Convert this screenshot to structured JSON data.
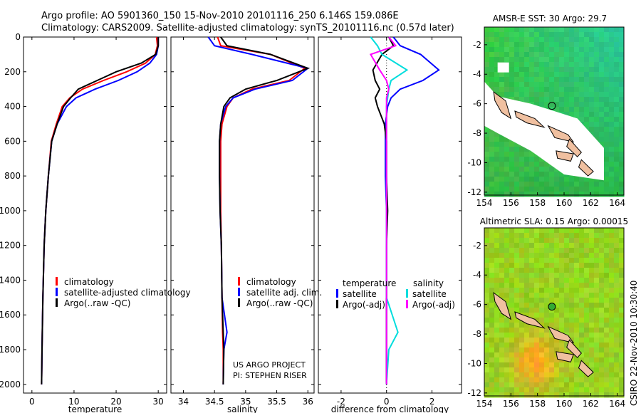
{
  "header": {
    "line1": "Argo profile: AO 5901360_150 15-Nov-2010 20101116_250 6.146S 159.086E",
    "line2": "Climatology: CARS2009. Satellite-adjusted climatology: synTS_20101116.nc (0.57d later)"
  },
  "side_label": "CSIRO 22-Nov-2010 10:30:40",
  "colors": {
    "climatology": "#ff0000",
    "satellite": "#0000ff",
    "argo": "#000000",
    "satellite_sal": "#00dddd",
    "argo_sal_diff": "#ff00ff"
  },
  "chart_data": [
    {
      "type": "line",
      "xlabel": "temperature",
      "ylabel": "",
      "xlim": [
        -2,
        32
      ],
      "ylim": [
        2050,
        0
      ],
      "x_ticks": [
        "0",
        "10",
        "20",
        "30"
      ],
      "y_ticks": [
        "0",
        "200",
        "400",
        "600",
        "800",
        "1000",
        "1200",
        "1400",
        "1600",
        "1800",
        "2000"
      ],
      "legend": [
        "climatology",
        "satellite-adjusted climatology",
        "Argo(..raw -QC)"
      ],
      "series": [
        {
          "name": "climatology",
          "color": "#ff0000",
          "x": [
            29.6,
            29.8,
            29.3,
            27.0,
            22.5,
            17.0,
            12.0,
            9.0,
            7.2,
            5.8,
            4.6,
            3.9,
            3.3,
            2.9,
            2.6,
            2.4,
            2.3
          ],
          "y": [
            0,
            50,
            100,
            150,
            200,
            250,
            300,
            350,
            400,
            500,
            600,
            800,
            1000,
            1200,
            1500,
            1800,
            2000
          ]
        },
        {
          "name": "satellite-adjusted climatology",
          "color": "#0000ff",
          "x": [
            30.0,
            30.0,
            29.6,
            28.0,
            25.0,
            20.5,
            15.0,
            10.5,
            8.2,
            6.0,
            4.7,
            3.9,
            3.3,
            2.9,
            2.6,
            2.4,
            2.3
          ],
          "y": [
            0,
            50,
            100,
            150,
            200,
            250,
            300,
            350,
            400,
            500,
            600,
            800,
            1000,
            1200,
            1500,
            1800,
            2000
          ]
        },
        {
          "name": "Argo(..raw -QC)",
          "color": "#000000",
          "x": [
            30.0,
            30.0,
            29.4,
            26.0,
            20.0,
            15.5,
            11.0,
            9.2,
            7.5,
            6.0,
            4.7,
            3.9,
            3.3,
            2.9,
            2.6,
            2.4,
            2.3
          ],
          "y": [
            0,
            50,
            100,
            150,
            200,
            250,
            300,
            350,
            400,
            500,
            600,
            800,
            1000,
            1200,
            1500,
            1800,
            2000
          ]
        }
      ]
    },
    {
      "type": "line",
      "xlabel": "salinity",
      "xlim": [
        33.8,
        36.1
      ],
      "ylim": [
        2050,
        0
      ],
      "x_ticks": [
        "34",
        "34.5",
        "35",
        "35.5",
        "36"
      ],
      "legend": [
        "climatology",
        "satellite adj. clim.",
        "Argo(..raw -QC)"
      ],
      "annotation": [
        "US ARGO PROJECT",
        "PI: STEPHEN RISER"
      ],
      "series": [
        {
          "name": "climatology",
          "color": "#ff0000",
          "x": [
            34.55,
            34.6,
            35.4,
            35.95,
            35.7,
            35.1,
            34.8,
            34.7,
            34.62,
            34.6,
            34.6,
            34.6,
            34.61,
            34.62,
            34.63,
            34.64,
            34.64
          ],
          "y": [
            0,
            50,
            100,
            180,
            250,
            300,
            350,
            400,
            500,
            600,
            800,
            1000,
            1200,
            1500,
            1700,
            1800,
            2000
          ]
        },
        {
          "name": "satellite adj. clim.",
          "color": "#0000ff",
          "x": [
            34.4,
            34.5,
            35.1,
            36.0,
            35.75,
            35.15,
            34.8,
            34.68,
            34.6,
            34.58,
            34.58,
            34.59,
            34.61,
            34.62,
            34.7,
            34.65,
            34.64
          ],
          "y": [
            0,
            50,
            100,
            180,
            250,
            300,
            350,
            400,
            500,
            600,
            800,
            1000,
            1200,
            1500,
            1700,
            1800,
            2000
          ]
        },
        {
          "name": "Argo(..raw -QC)",
          "color": "#000000",
          "x": [
            34.6,
            34.7,
            35.4,
            36.0,
            35.5,
            35.0,
            34.75,
            34.65,
            34.6,
            34.58,
            34.58,
            34.59,
            34.61,
            34.62,
            34.64,
            34.65,
            34.64
          ],
          "y": [
            0,
            50,
            100,
            180,
            250,
            300,
            350,
            400,
            500,
            600,
            800,
            1000,
            1200,
            1500,
            1700,
            1800,
            2000
          ]
        }
      ]
    },
    {
      "type": "line",
      "xlabel": "difference from climatology",
      "xlim": [
        -3,
        3.3
      ],
      "ylim": [
        2050,
        0
      ],
      "x_ticks": [
        "-2",
        "0",
        "2"
      ],
      "legend_titles": [
        "temperature",
        "salinity"
      ],
      "legend": [
        "satellite",
        "Argo(-adj)",
        "satellite",
        "Argo(-adj)"
      ],
      "series": [
        {
          "name": "satellite",
          "color": "#0000ff",
          "x": [
            0.3,
            0.6,
            1.5,
            2.3,
            1.6,
            0.6,
            0.2,
            0.05,
            -0.05,
            -0.05,
            -0.05,
            0,
            0,
            0,
            0,
            0,
            0
          ],
          "y": [
            0,
            50,
            100,
            190,
            250,
            300,
            350,
            400,
            500,
            600,
            800,
            1000,
            1200,
            1500,
            1700,
            1800,
            2000
          ]
        },
        {
          "name": "Argo(-adj)",
          "color": "#000000",
          "x": [
            0.1,
            0.3,
            -0.2,
            -0.6,
            -0.5,
            -0.3,
            -0.5,
            -0.4,
            -0.1,
            0,
            0,
            0.05,
            0,
            0,
            0,
            0,
            0
          ],
          "y": [
            0,
            50,
            100,
            190,
            250,
            300,
            350,
            400,
            500,
            600,
            800,
            1000,
            1200,
            1500,
            1700,
            1800,
            2000
          ]
        },
        {
          "name": "satellite",
          "color": "#00dddd",
          "x": [
            -0.7,
            -0.4,
            -0.2,
            0.9,
            0.2,
            0.1,
            0.05,
            0,
            0,
            0,
            0,
            0,
            0,
            0,
            0.5,
            0.1,
            0
          ],
          "y": [
            0,
            50,
            100,
            190,
            250,
            300,
            350,
            400,
            500,
            600,
            800,
            1000,
            1200,
            1500,
            1700,
            1800,
            2000
          ]
        },
        {
          "name": "Argo(-adj)",
          "color": "#ff00ff",
          "x": [
            0.1,
            0.4,
            -0.7,
            -0.3,
            0.0,
            0.1,
            0.0,
            0,
            0,
            0,
            0,
            0,
            0,
            0,
            0,
            0,
            0
          ],
          "y": [
            0,
            50,
            100,
            190,
            250,
            300,
            350,
            400,
            500,
            600,
            800,
            1000,
            1200,
            1500,
            1700,
            1800,
            2000
          ]
        }
      ]
    },
    {
      "type": "heatmap",
      "title": "AMSR-E SST: 30 Argo: 29.7",
      "xlim": [
        154,
        164.5
      ],
      "ylim": [
        -12.2,
        -0.8
      ],
      "x_ticks": [
        "154",
        "156",
        "158",
        "160",
        "162",
        "164"
      ],
      "y_ticks": [
        "-2",
        "-4",
        "-6",
        "-8",
        "-10",
        "-12"
      ],
      "marker": {
        "lon": 159.086,
        "lat": -6.146
      }
    },
    {
      "type": "heatmap",
      "title": "Altimetric SLA: 0.15 Argo: 0.00015",
      "xlim": [
        154,
        164.5
      ],
      "ylim": [
        -12.2,
        -0.8
      ],
      "x_ticks": [
        "154",
        "156",
        "158",
        "160",
        "162",
        "164"
      ],
      "y_ticks": [
        "-2",
        "-4",
        "-6",
        "-8",
        "-10",
        "-12"
      ],
      "marker": {
        "lon": 159.086,
        "lat": -6.146
      }
    }
  ]
}
